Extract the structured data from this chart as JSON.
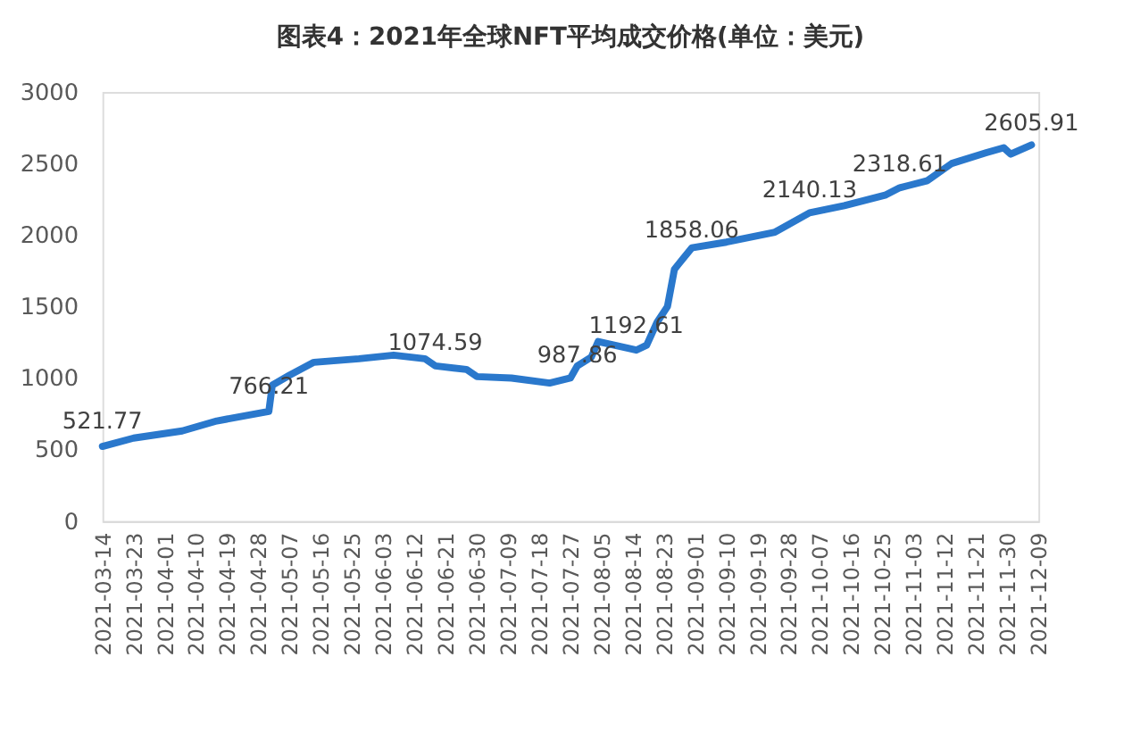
{
  "chart_data": {
    "type": "line",
    "title": "图表4：2021年全球NFT平均成交价格(单位：美元)",
    "x": [
      "2021-03-14",
      "2021-03-23",
      "2021-04-06",
      "2021-04-16",
      "2021-04-25",
      "2021-05-01",
      "2021-05-02",
      "2021-05-07",
      "2021-05-14",
      "2021-05-27",
      "2021-06-06",
      "2021-06-15",
      "2021-06-18",
      "2021-06-27",
      "2021-06-30",
      "2021-07-10",
      "2021-07-21",
      "2021-07-27",
      "2021-07-29",
      "2021-08-02",
      "2021-08-04",
      "2021-08-15",
      "2021-08-18",
      "2021-08-21",
      "2021-08-24",
      "2021-08-26",
      "2021-08-31",
      "2021-09-10",
      "2021-09-24",
      "2021-10-04",
      "2021-10-14",
      "2021-10-26",
      "2021-10-30",
      "2021-11-07",
      "2021-11-14",
      "2021-11-24",
      "2021-11-29",
      "2021-12-01",
      "2021-12-07"
    ],
    "series": [
      {
        "color": "#2a78cc",
        "values": [
          521.77,
          580,
          630,
          700,
          740,
          766.21,
          950,
          1020,
          1110,
          1135,
          1160,
          1135,
          1085,
          1060,
          1010,
          1000,
          965,
          1000,
          1085,
          1145,
          1255,
          1195,
          1230,
          1390,
          1500,
          1760,
          1910,
          1950,
          2020,
          2155,
          2205,
          2280,
          2330,
          2380,
          2500,
          2575,
          2610,
          2565,
          2630
        ]
      }
    ],
    "ylim": [
      0,
      3000
    ],
    "yticks": [
      0,
      500,
      1000,
      1500,
      2000,
      2500,
      3000
    ],
    "xlim": [
      "2021-03-14",
      "2021-12-09"
    ],
    "xticks": [
      "2021-03-14",
      "2021-03-23",
      "2021-04-01",
      "2021-04-10",
      "2021-04-19",
      "2021-04-28",
      "2021-05-07",
      "2021-05-16",
      "2021-05-25",
      "2021-06-03",
      "2021-06-12",
      "2021-06-21",
      "2021-06-30",
      "2021-07-09",
      "2021-07-18",
      "2021-07-27",
      "2021-08-05",
      "2021-08-14",
      "2021-08-23",
      "2021-09-01",
      "2021-09-10",
      "2021-09-19",
      "2021-09-28",
      "2021-10-07",
      "2021-10-16",
      "2021-10-25",
      "2021-11-03",
      "2021-11-12",
      "2021-11-21",
      "2021-11-30",
      "2021-12-09"
    ],
    "annotations": [
      {
        "text": "521.77",
        "x": "2021-03-14",
        "y": 521.77
      },
      {
        "text": "766.21",
        "x": "2021-05-01",
        "y": 766.21
      },
      {
        "text": "1074.59",
        "x": "2021-06-18",
        "y": 1074.59
      },
      {
        "text": "987.86",
        "x": "2021-07-29",
        "y": 987.86
      },
      {
        "text": "1192.61",
        "x": "2021-08-15",
        "y": 1192.61
      },
      {
        "text": "1858.06",
        "x": "2021-08-31",
        "y": 1858.06
      },
      {
        "text": "2140.13",
        "x": "2021-10-04",
        "y": 2140.13
      },
      {
        "text": "2318.61",
        "x": "2021-10-30",
        "y": 2318.61
      },
      {
        "text": "2605.91",
        "x": "2021-12-07",
        "y": 2605.91
      }
    ],
    "grid": false,
    "marker": "none",
    "line_style": "solid"
  }
}
